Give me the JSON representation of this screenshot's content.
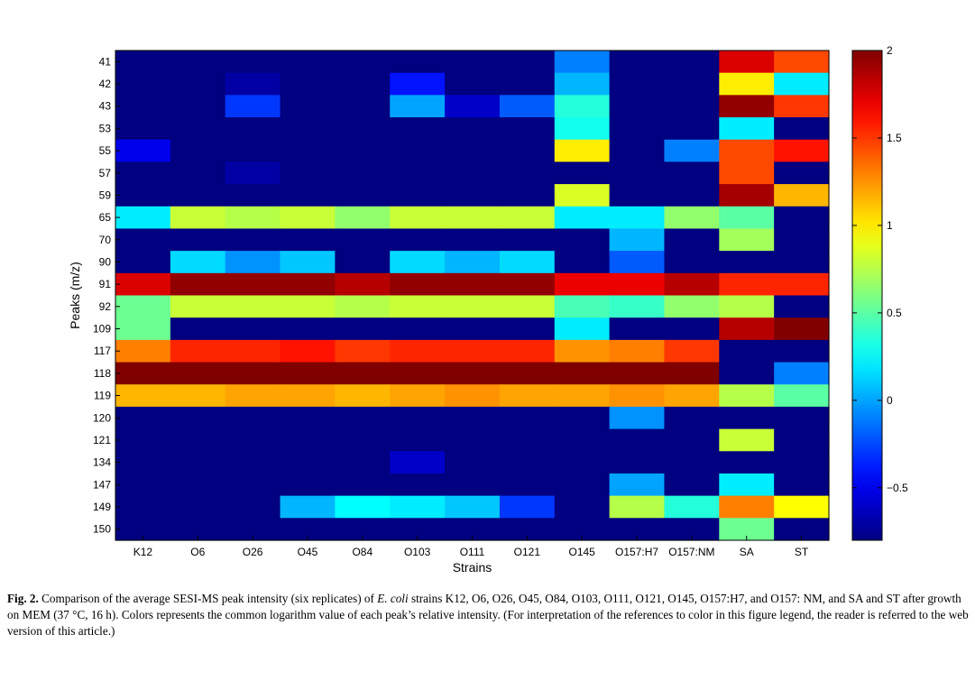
{
  "chart_data": {
    "type": "heatmap",
    "xlabel": "Strains",
    "ylabel": "Peaks (m/z)",
    "x_categories": [
      "K12",
      "O6",
      "O26",
      "O45",
      "O84",
      "O103",
      "O111",
      "O121",
      "O145",
      "O157:H7",
      "O157:NM",
      "SA",
      "ST"
    ],
    "y_categories": [
      "41",
      "42",
      "43",
      "53",
      "55",
      "57",
      "59",
      "65",
      "70",
      "90",
      "91",
      "92",
      "109",
      "117",
      "118",
      "119",
      "120",
      "121",
      "134",
      "147",
      "149",
      "150"
    ],
    "colorbar": {
      "range": [
        -0.8,
        2
      ],
      "ticks": [
        -0.5,
        0,
        0.5,
        1,
        1.5,
        2
      ],
      "tick_labels": [
        "−0.5",
        "0",
        "0.5",
        "1",
        "1.5",
        "2"
      ],
      "colormap": "jet"
    },
    "values": [
      [
        -0.8,
        -0.8,
        -0.8,
        -0.8,
        -0.8,
        -0.8,
        -0.8,
        -0.8,
        -0.1,
        -0.8,
        -0.8,
        1.75,
        1.45
      ],
      [
        -0.8,
        -0.8,
        -0.7,
        -0.8,
        -0.8,
        -0.4,
        -0.8,
        -0.8,
        0.05,
        -0.8,
        -0.8,
        1.0,
        0.2
      ],
      [
        -0.8,
        -0.8,
        -0.3,
        -0.8,
        -0.8,
        0.0,
        -0.6,
        -0.2,
        0.35,
        -0.8,
        -0.8,
        1.95,
        1.5
      ],
      [
        -0.8,
        -0.8,
        -0.8,
        -0.8,
        -0.8,
        -0.8,
        -0.8,
        -0.8,
        0.3,
        -0.8,
        -0.8,
        0.2,
        -0.8
      ],
      [
        -0.5,
        -0.8,
        -0.8,
        -0.8,
        -0.8,
        -0.8,
        -0.8,
        -0.8,
        1.0,
        -0.8,
        -0.1,
        1.45,
        1.6
      ],
      [
        -0.8,
        -0.8,
        -0.7,
        -0.8,
        -0.8,
        -0.8,
        -0.8,
        -0.8,
        -0.8,
        -0.8,
        -0.8,
        1.45,
        -0.8
      ],
      [
        -0.8,
        -0.8,
        -0.8,
        -0.8,
        -0.8,
        -0.8,
        -0.8,
        -0.8,
        0.85,
        -0.8,
        -0.8,
        1.9,
        1.15
      ],
      [
        0.2,
        0.8,
        0.75,
        0.8,
        0.65,
        0.8,
        0.8,
        0.8,
        0.2,
        0.2,
        0.65,
        0.5,
        -0.8
      ],
      [
        -0.8,
        -0.8,
        -0.8,
        -0.8,
        -0.8,
        -0.8,
        -0.8,
        -0.8,
        -0.8,
        0.05,
        -0.8,
        0.7,
        -0.8
      ],
      [
        -0.8,
        0.15,
        -0.05,
        0.1,
        -0.8,
        0.15,
        0.05,
        0.15,
        -0.8,
        -0.2,
        -0.8,
        -0.8,
        -0.8
      ],
      [
        1.75,
        1.95,
        1.95,
        1.95,
        1.85,
        1.95,
        1.95,
        1.95,
        1.7,
        1.7,
        1.85,
        1.55,
        1.55
      ],
      [
        0.55,
        0.8,
        0.8,
        0.8,
        0.75,
        0.8,
        0.8,
        0.8,
        0.45,
        0.4,
        0.65,
        0.75,
        -0.8
      ],
      [
        0.55,
        -0.8,
        -0.8,
        -0.8,
        -0.8,
        -0.8,
        -0.8,
        -0.8,
        0.2,
        -0.8,
        -0.8,
        1.85,
        2.0
      ],
      [
        1.3,
        1.55,
        1.55,
        1.6,
        1.5,
        1.55,
        1.55,
        1.55,
        1.25,
        1.3,
        1.5,
        -0.8,
        -0.8
      ],
      [
        2.0,
        2.0,
        2.0,
        2.0,
        2.0,
        2.0,
        2.0,
        2.0,
        2.0,
        2.0,
        2.0,
        -0.8,
        -0.1
      ],
      [
        1.15,
        1.15,
        1.2,
        1.2,
        1.15,
        1.2,
        1.25,
        1.2,
        1.2,
        1.25,
        1.2,
        0.75,
        0.5
      ],
      [
        -0.8,
        -0.8,
        -0.8,
        -0.8,
        -0.8,
        -0.8,
        -0.8,
        -0.8,
        -0.8,
        -0.05,
        -0.8,
        -0.8,
        -0.8
      ],
      [
        -0.8,
        -0.8,
        -0.8,
        -0.8,
        -0.8,
        -0.8,
        -0.8,
        -0.8,
        -0.8,
        -0.8,
        -0.8,
        0.8,
        -0.8
      ],
      [
        -0.8,
        -0.8,
        -0.8,
        -0.8,
        -0.8,
        -0.6,
        -0.8,
        -0.8,
        -0.8,
        -0.8,
        -0.8,
        -0.8,
        -0.8
      ],
      [
        -0.8,
        -0.8,
        -0.8,
        -0.8,
        -0.8,
        -0.8,
        -0.8,
        -0.8,
        -0.8,
        0.0,
        -0.8,
        0.2,
        -0.8
      ],
      [
        -0.8,
        -0.8,
        -0.8,
        0.05,
        0.25,
        0.2,
        0.1,
        -0.3,
        -0.8,
        0.75,
        0.35,
        1.3,
        0.95
      ],
      [
        -0.8,
        -0.8,
        -0.8,
        -0.8,
        -0.8,
        -0.8,
        -0.8,
        -0.8,
        -0.8,
        -0.8,
        -0.8,
        0.55,
        -0.8
      ]
    ]
  },
  "caption": {
    "label": "Fig. 2.",
    "text_1": " Comparison of the average SESI-MS peak intensity (six replicates) of ",
    "italic": "E. coli",
    "text_2": " strains K12, O6, O26, O45, O84, O103, O111, O121, O145, O157:H7, and O157: NM, and SA and ST after growth on MEM (37 °C, 16 h). Colors represents the common logarithm value of each peak’s relative intensity. (For interpretation of the references to color in this figure legend, the reader is referred to the web version of this article.)"
  }
}
